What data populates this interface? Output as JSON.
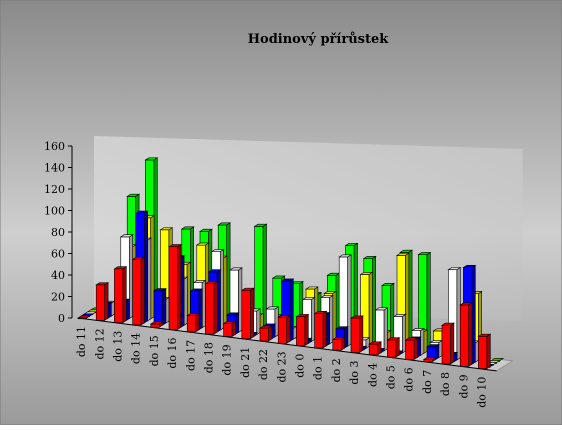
{
  "chart_data": {
    "type": "bar",
    "title": "Hodinový přírůstek",
    "xlabel": "",
    "ylabel": "",
    "ylim": [
      0,
      160
    ],
    "y_ticks": [
      "0",
      "20",
      "40",
      "60",
      "80",
      "100",
      "120",
      "140",
      "160"
    ],
    "categories": [
      "do 11",
      "do 12",
      "do 13",
      "do 14",
      "do 15",
      "do 16",
      "do 17",
      "do 18",
      "do 19",
      "do 21",
      "do 22",
      "do 23",
      "do 0",
      "do 1",
      "do 2",
      "do 3",
      "do 4",
      "do 5",
      "do 6",
      "do 7",
      "do 8",
      "do 9",
      "do 10"
    ],
    "grid": false,
    "projection": "3d",
    "series": [
      {
        "color": "#ff0000",
        "values": [
          0,
          33,
          50,
          61,
          3,
          77,
          15,
          47,
          12,
          45,
          12,
          24,
          27,
          32,
          10,
          32,
          10,
          16,
          18,
          2,
          36,
          57,
          30
        ]
      },
      {
        "color": "#0000ff",
        "values": [
          0,
          13,
          18,
          102,
          32,
          65,
          36,
          56,
          18,
          2,
          12,
          56,
          3,
          29,
          18,
          2,
          2,
          2,
          17,
          12,
          7,
          90,
          0
        ]
      },
      {
        "color": "#ffffff",
        "values": [
          0,
          12,
          76,
          75,
          22,
          43,
          42,
          73,
          58,
          22,
          26,
          10,
          39,
          43,
          83,
          8,
          38,
          34,
          23,
          14,
          84,
          18,
          0
        ]
      },
      {
        "color": "#ffff00",
        "values": [
          0,
          8,
          65,
          94,
          85,
          55,
          75,
          65,
          12,
          16,
          17,
          0,
          47,
          45,
          20,
          67,
          15,
          89,
          20,
          23,
          23,
          62,
          0
        ]
      },
      {
        "color": "#00ff00",
        "values": [
          0,
          5,
          110,
          146,
          56,
          86,
          86,
          94,
          30,
          97,
          51,
          48,
          40,
          60,
          90,
          80,
          57,
          90,
          90,
          0,
          0,
          0,
          0
        ]
      }
    ]
  }
}
